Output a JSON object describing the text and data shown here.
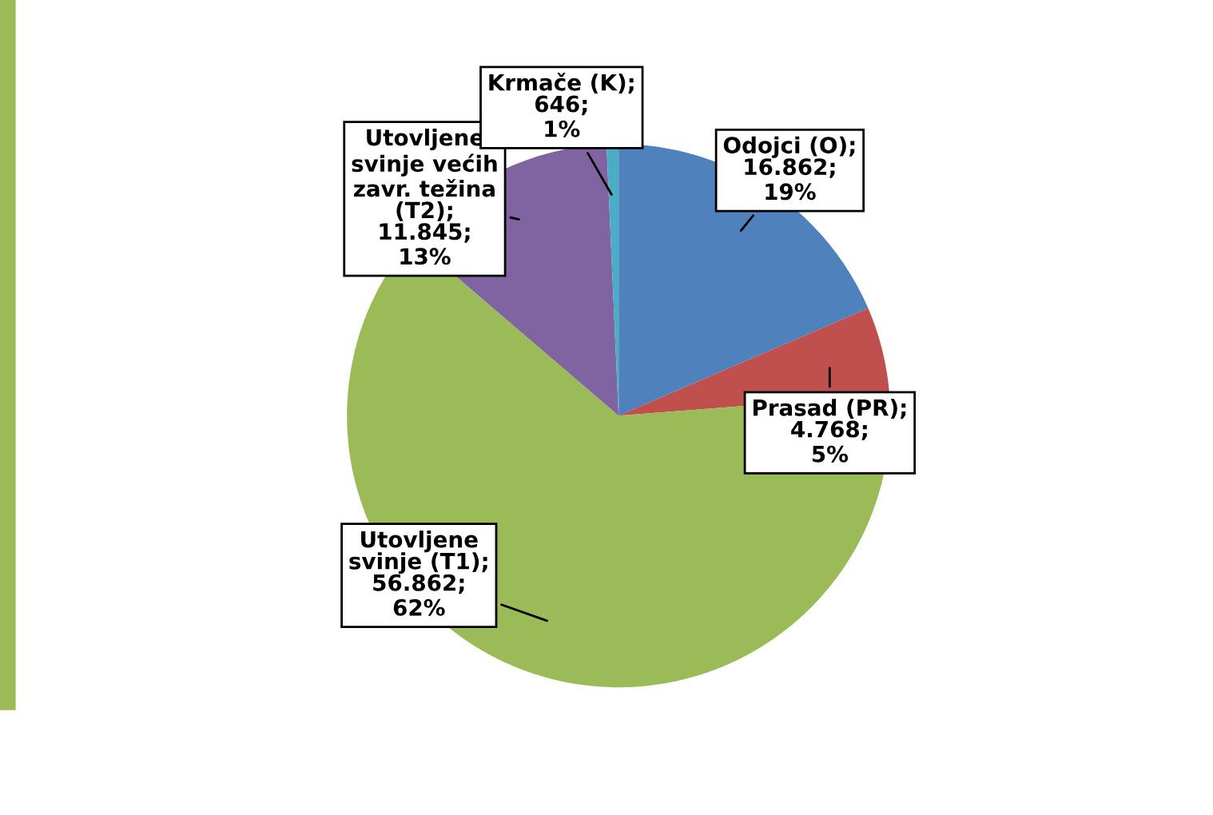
{
  "chart_data": {
    "type": "pie",
    "categories": [
      "Odojci (O)",
      "Prasad (PR)",
      "Utovljene svinje (T1)",
      "Utovljene svinje većih zavr. težina (T2)",
      "Krmače (K)"
    ],
    "values": [
      16862,
      4768,
      56862,
      11845,
      646
    ],
    "value_labels": [
      "; 16.862; 19%",
      "; 4.768; 5%",
      "; 56.862; 62%",
      "; 11.845; 13%",
      "; 646; 1%"
    ],
    "colors": [
      "#4f81bd",
      "#c0504d",
      "#9bbb59",
      "#8064a2",
      "#4bacc6"
    ]
  }
}
